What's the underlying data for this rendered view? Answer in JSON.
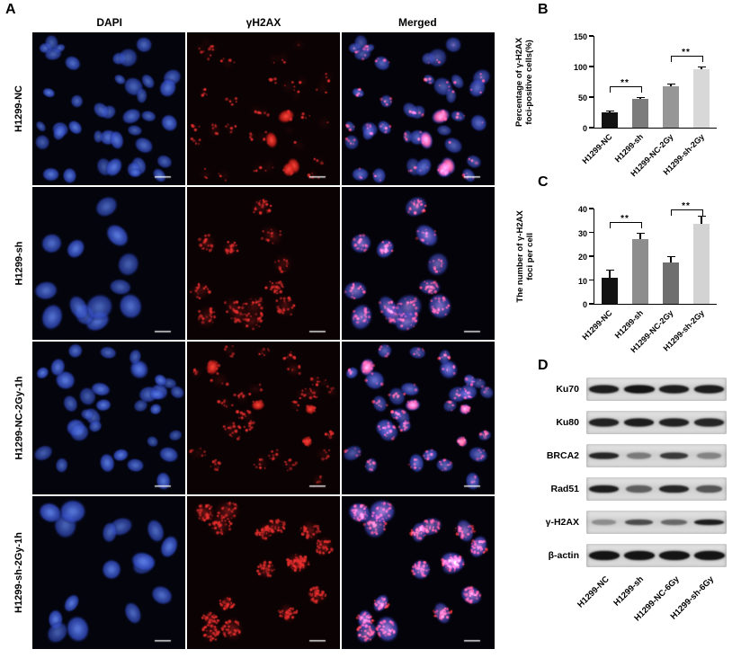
{
  "figure": {
    "panelA": {
      "label": "A",
      "columns": [
        "DAPI",
        "γH2AX",
        "Merged"
      ],
      "rows": [
        {
          "label": "H1299-NC",
          "render": {
            "cells": 40,
            "rmin": 7,
            "rmax": 12,
            "foci_min": 0,
            "foci_max": 6,
            "glow": 0.1,
            "patch_prob": 0.05,
            "seed": 11
          }
        },
        {
          "label": "H1299-sh",
          "render": {
            "cells": 13,
            "rmin": 12,
            "rmax": 17,
            "foci_min": 12,
            "foci_max": 26,
            "glow": 0.3,
            "patch_prob": 0.0,
            "seed": 22
          }
        },
        {
          "label": "H1299-NC-2Gy-1h",
          "render": {
            "cells": 34,
            "rmin": 7,
            "rmax": 12,
            "foci_min": 2,
            "foci_max": 10,
            "glow": 0.15,
            "patch_prob": 0.22,
            "seed": 33
          }
        },
        {
          "label": "H1299-sh-2Gy-1h",
          "render": {
            "cells": 16,
            "rmin": 11,
            "rmax": 16,
            "foci_min": 20,
            "foci_max": 36,
            "glow": 0.45,
            "patch_prob": 0.08,
            "seed": 44
          }
        }
      ]
    },
    "panelB": {
      "label": "B"
    },
    "panelC": {
      "label": "C"
    },
    "panelD": {
      "label": "D",
      "proteins": [
        {
          "name": "Ku70",
          "band_height": 9,
          "intensities": [
            0.95,
            1.0,
            0.95,
            0.95
          ]
        },
        {
          "name": "Ku80",
          "band_height": 9,
          "intensities": [
            0.92,
            0.95,
            0.92,
            0.9
          ]
        },
        {
          "name": "BRCA2",
          "band_height": 7,
          "intensities": [
            0.9,
            0.45,
            0.8,
            0.4
          ]
        },
        {
          "name": "Rad51",
          "band_height": 8,
          "intensities": [
            0.95,
            0.6,
            0.9,
            0.65
          ]
        },
        {
          "name": "γ-H2AX",
          "band_height": 6,
          "intensities": [
            0.35,
            0.7,
            0.55,
            0.95
          ]
        },
        {
          "name": "β-actin",
          "band_height": 10,
          "intensities": [
            1.0,
            1.0,
            1.0,
            1.0
          ]
        }
      ],
      "lanes": [
        "H1299-NC",
        "H1299-sh",
        "H1299-NC-6Gy",
        "H1299-sh-6Gy"
      ]
    }
  },
  "chart_data": [
    {
      "id": "B",
      "type": "bar",
      "categories": [
        "H1299-NC",
        "H1299-sh",
        "H1299-NC-2Gy",
        "H1299-sh-2Gy"
      ],
      "values": [
        25,
        47,
        68,
        95
      ],
      "errors": [
        2,
        2,
        3,
        3
      ],
      "bar_colors": [
        "#121212",
        "#7c7c7c",
        "#969696",
        "#d8d8d8"
      ],
      "title": "",
      "xlabel": "",
      "ylabel": "Percentage of γ-H2AX foci-positive cells(%)",
      "ylabel_lines": [
        "Percentage of γ-H2AX",
        "foci-positive cells(%)"
      ],
      "ylim": [
        0,
        150
      ],
      "yticks": [
        0,
        50,
        100,
        150
      ],
      "grid": false,
      "legend_position": "none",
      "significance": [
        {
          "between": [
            0,
            1
          ],
          "label": "**"
        },
        {
          "between": [
            2,
            3
          ],
          "label": "**"
        }
      ]
    },
    {
      "id": "C",
      "type": "bar",
      "categories": [
        "H1299-NC",
        "H1299-sh",
        "H1299-NC-2Gy",
        "H1299-sh-2Gy"
      ],
      "values": [
        11,
        27,
        17.5,
        33.5
      ],
      "errors": [
        3,
        2.5,
        2,
        3
      ],
      "bar_colors": [
        "#121212",
        "#8d8d8d",
        "#6f6f6f",
        "#d3d3d3"
      ],
      "title": "",
      "xlabel": "",
      "ylabel": "The number of γ-H2AX foci per cell",
      "ylabel_lines": [
        "The number of γ-H2AX",
        "foci per cell"
      ],
      "ylim": [
        0,
        40
      ],
      "yticks": [
        0,
        10,
        20,
        30,
        40
      ],
      "grid": false,
      "legend_position": "none",
      "significance": [
        {
          "between": [
            0,
            1
          ],
          "label": "**"
        },
        {
          "between": [
            2,
            3
          ],
          "label": "**"
        }
      ]
    }
  ]
}
